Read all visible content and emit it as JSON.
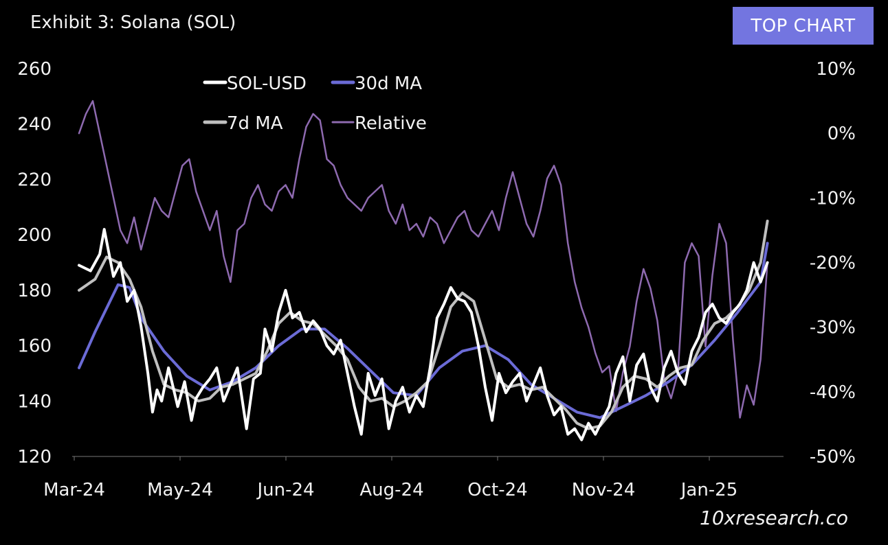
{
  "header": {
    "title": "Exhibit 3: Solana (SOL)",
    "badge": "TOP CHART"
  },
  "footer": {
    "credit": "10xresearch.co"
  },
  "chart_data": {
    "type": "line",
    "title": "Exhibit 3: Solana (SOL)",
    "x_ticks": [
      "Mar-24",
      "May-24",
      "Jun-24",
      "Aug-24",
      "Oct-24",
      "Nov-24",
      "Jan-25"
    ],
    "y_left": {
      "min": 120,
      "max": 260,
      "ticks": [
        260,
        240,
        220,
        200,
        180,
        160,
        140,
        120
      ]
    },
    "y_right": {
      "min": -50,
      "max": 10,
      "ticks": [
        "10%",
        "0%",
        "-10%",
        "-20%",
        "-30%",
        "-40%",
        "-50%"
      ],
      "tick_values": [
        10,
        0,
        -10,
        -20,
        -30,
        -40,
        -50
      ]
    },
    "grid": false,
    "legend": {
      "placement": "top-center"
    },
    "x_domain": [
      0,
      310
    ],
    "series": [
      {
        "name": "SOL-USD",
        "axis": "left",
        "color": "#ffffff",
        "points": [
          [
            3,
            189
          ],
          [
            8,
            187
          ],
          [
            12,
            193
          ],
          [
            14,
            202
          ],
          [
            18,
            185
          ],
          [
            21,
            190
          ],
          [
            24,
            176
          ],
          [
            27,
            180
          ],
          [
            30,
            167
          ],
          [
            33,
            150
          ],
          [
            35,
            136
          ],
          [
            37,
            144
          ],
          [
            39,
            140
          ],
          [
            42,
            152
          ],
          [
            46,
            138
          ],
          [
            49,
            147
          ],
          [
            52,
            133
          ],
          [
            54,
            141
          ],
          [
            57,
            145
          ],
          [
            60,
            148
          ],
          [
            63,
            152
          ],
          [
            66,
            140
          ],
          [
            69,
            146
          ],
          [
            72,
            152
          ],
          [
            76,
            130
          ],
          [
            79,
            148
          ],
          [
            82,
            150
          ],
          [
            84,
            166
          ],
          [
            87,
            158
          ],
          [
            90,
            172
          ],
          [
            93,
            180
          ],
          [
            96,
            170
          ],
          [
            99,
            172
          ],
          [
            102,
            165
          ],
          [
            105,
            169
          ],
          [
            108,
            166
          ],
          [
            111,
            160
          ],
          [
            114,
            157
          ],
          [
            117,
            162
          ],
          [
            120,
            150
          ],
          [
            123,
            138
          ],
          [
            126,
            128
          ],
          [
            129,
            150
          ],
          [
            132,
            142
          ],
          [
            135,
            148
          ],
          [
            138,
            130
          ],
          [
            141,
            140
          ],
          [
            144,
            145
          ],
          [
            147,
            136
          ],
          [
            150,
            142
          ],
          [
            153,
            138
          ],
          [
            156,
            152
          ],
          [
            159,
            170
          ],
          [
            162,
            175
          ],
          [
            165,
            181
          ],
          [
            168,
            177
          ],
          [
            171,
            176
          ],
          [
            174,
            172
          ],
          [
            177,
            160
          ],
          [
            180,
            145
          ],
          [
            183,
            133
          ],
          [
            186,
            150
          ],
          [
            189,
            143
          ],
          [
            192,
            147
          ],
          [
            195,
            150
          ],
          [
            198,
            140
          ],
          [
            201,
            146
          ],
          [
            204,
            152
          ],
          [
            207,
            142
          ],
          [
            210,
            135
          ],
          [
            213,
            138
          ],
          [
            216,
            128
          ],
          [
            219,
            130
          ],
          [
            222,
            126
          ],
          [
            225,
            132
          ],
          [
            228,
            128
          ],
          [
            231,
            133
          ],
          [
            234,
            138
          ],
          [
            237,
            150
          ],
          [
            240,
            156
          ],
          [
            243,
            140
          ],
          [
            246,
            153
          ],
          [
            249,
            157
          ],
          [
            252,
            145
          ],
          [
            255,
            140
          ],
          [
            258,
            152
          ],
          [
            261,
            158
          ],
          [
            264,
            150
          ],
          [
            267,
            146
          ],
          [
            270,
            158
          ],
          [
            273,
            163
          ],
          [
            276,
            172
          ],
          [
            279,
            175
          ],
          [
            282,
            170
          ],
          [
            285,
            168
          ],
          [
            288,
            172
          ],
          [
            291,
            175
          ],
          [
            294,
            180
          ],
          [
            297,
            190
          ],
          [
            300,
            183
          ],
          [
            303,
            190
          ]
        ]
      },
      {
        "name": "7d MA",
        "axis": "left",
        "color": "#bfbfbf",
        "points": [
          [
            3,
            180
          ],
          [
            10,
            184
          ],
          [
            15,
            192
          ],
          [
            20,
            190
          ],
          [
            25,
            184
          ],
          [
            30,
            174
          ],
          [
            35,
            158
          ],
          [
            40,
            146
          ],
          [
            45,
            144
          ],
          [
            50,
            143
          ],
          [
            55,
            140
          ],
          [
            60,
            141
          ],
          [
            65,
            145
          ],
          [
            70,
            146
          ],
          [
            75,
            148
          ],
          [
            80,
            150
          ],
          [
            85,
            158
          ],
          [
            90,
            168
          ],
          [
            95,
            172
          ],
          [
            100,
            169
          ],
          [
            105,
            168
          ],
          [
            110,
            164
          ],
          [
            115,
            160
          ],
          [
            120,
            155
          ],
          [
            125,
            145
          ],
          [
            130,
            140
          ],
          [
            135,
            141
          ],
          [
            140,
            138
          ],
          [
            145,
            140
          ],
          [
            150,
            143
          ],
          [
            155,
            147
          ],
          [
            160,
            160
          ],
          [
            165,
            174
          ],
          [
            170,
            179
          ],
          [
            175,
            176
          ],
          [
            180,
            162
          ],
          [
            185,
            148
          ],
          [
            190,
            145
          ],
          [
            195,
            146
          ],
          [
            200,
            144
          ],
          [
            205,
            145
          ],
          [
            210,
            141
          ],
          [
            215,
            137
          ],
          [
            220,
            132
          ],
          [
            225,
            130
          ],
          [
            230,
            131
          ],
          [
            235,
            136
          ],
          [
            240,
            145
          ],
          [
            245,
            149
          ],
          [
            250,
            148
          ],
          [
            255,
            145
          ],
          [
            260,
            149
          ],
          [
            265,
            152
          ],
          [
            270,
            153
          ],
          [
            275,
            162
          ],
          [
            280,
            168
          ],
          [
            285,
            170
          ],
          [
            290,
            174
          ],
          [
            295,
            180
          ],
          [
            300,
            190
          ],
          [
            303,
            205
          ]
        ]
      },
      {
        "name": "30d MA",
        "axis": "left",
        "color": "#6b6bd6",
        "points": [
          [
            3,
            152
          ],
          [
            10,
            165
          ],
          [
            20,
            182
          ],
          [
            25,
            181
          ],
          [
            30,
            170
          ],
          [
            40,
            158
          ],
          [
            50,
            149
          ],
          [
            60,
            144
          ],
          [
            70,
            147
          ],
          [
            80,
            152
          ],
          [
            90,
            160
          ],
          [
            100,
            166
          ],
          [
            110,
            166
          ],
          [
            120,
            159
          ],
          [
            130,
            151
          ],
          [
            140,
            143
          ],
          [
            150,
            142
          ],
          [
            160,
            152
          ],
          [
            170,
            158
          ],
          [
            180,
            160
          ],
          [
            190,
            155
          ],
          [
            200,
            146
          ],
          [
            210,
            141
          ],
          [
            220,
            136
          ],
          [
            230,
            134
          ],
          [
            240,
            138
          ],
          [
            250,
            142
          ],
          [
            260,
            147
          ],
          [
            270,
            153
          ],
          [
            280,
            162
          ],
          [
            290,
            172
          ],
          [
            300,
            183
          ],
          [
            303,
            197
          ]
        ]
      },
      {
        "name": "Relative",
        "axis": "right",
        "color": "#8e6ab0",
        "points": [
          [
            3,
            0
          ],
          [
            6,
            3
          ],
          [
            9,
            5
          ],
          [
            12,
            0
          ],
          [
            15,
            -5
          ],
          [
            18,
            -10
          ],
          [
            21,
            -15
          ],
          [
            24,
            -17
          ],
          [
            27,
            -13
          ],
          [
            30,
            -18
          ],
          [
            33,
            -14
          ],
          [
            36,
            -10
          ],
          [
            39,
            -12
          ],
          [
            42,
            -13
          ],
          [
            45,
            -9
          ],
          [
            48,
            -5
          ],
          [
            51,
            -4
          ],
          [
            54,
            -9
          ],
          [
            57,
            -12
          ],
          [
            60,
            -15
          ],
          [
            63,
            -12
          ],
          [
            66,
            -19
          ],
          [
            69,
            -23
          ],
          [
            72,
            -15
          ],
          [
            75,
            -14
          ],
          [
            78,
            -10
          ],
          [
            81,
            -8
          ],
          [
            84,
            -11
          ],
          [
            87,
            -12
          ],
          [
            90,
            -9
          ],
          [
            93,
            -8
          ],
          [
            96,
            -10
          ],
          [
            99,
            -4
          ],
          [
            102,
            1
          ],
          [
            105,
            3
          ],
          [
            108,
            2
          ],
          [
            111,
            -4
          ],
          [
            114,
            -5
          ],
          [
            117,
            -8
          ],
          [
            120,
            -10
          ],
          [
            123,
            -11
          ],
          [
            126,
            -12
          ],
          [
            129,
            -10
          ],
          [
            132,
            -9
          ],
          [
            135,
            -8
          ],
          [
            138,
            -12
          ],
          [
            141,
            -14
          ],
          [
            144,
            -11
          ],
          [
            147,
            -15
          ],
          [
            150,
            -14
          ],
          [
            153,
            -16
          ],
          [
            156,
            -13
          ],
          [
            159,
            -14
          ],
          [
            162,
            -17
          ],
          [
            165,
            -15
          ],
          [
            168,
            -13
          ],
          [
            171,
            -12
          ],
          [
            174,
            -15
          ],
          [
            177,
            -16
          ],
          [
            180,
            -14
          ],
          [
            183,
            -12
          ],
          [
            186,
            -15
          ],
          [
            189,
            -10
          ],
          [
            192,
            -6
          ],
          [
            195,
            -10
          ],
          [
            198,
            -14
          ],
          [
            201,
            -16
          ],
          [
            204,
            -12
          ],
          [
            207,
            -7
          ],
          [
            210,
            -5
          ],
          [
            213,
            -8
          ],
          [
            216,
            -17
          ],
          [
            219,
            -23
          ],
          [
            222,
            -27
          ],
          [
            225,
            -30
          ],
          [
            228,
            -34
          ],
          [
            231,
            -37
          ],
          [
            234,
            -36
          ],
          [
            237,
            -43
          ],
          [
            240,
            -37
          ],
          [
            243,
            -33
          ],
          [
            246,
            -26
          ],
          [
            249,
            -21
          ],
          [
            252,
            -24
          ],
          [
            255,
            -29
          ],
          [
            258,
            -38
          ],
          [
            261,
            -41
          ],
          [
            264,
            -37
          ],
          [
            267,
            -20
          ],
          [
            270,
            -17
          ],
          [
            273,
            -19
          ],
          [
            276,
            -33
          ],
          [
            279,
            -22
          ],
          [
            282,
            -14
          ],
          [
            285,
            -17
          ],
          [
            288,
            -32
          ],
          [
            291,
            -44
          ],
          [
            294,
            -39
          ],
          [
            297,
            -42
          ],
          [
            300,
            -35
          ],
          [
            303,
            -20
          ]
        ]
      }
    ]
  }
}
